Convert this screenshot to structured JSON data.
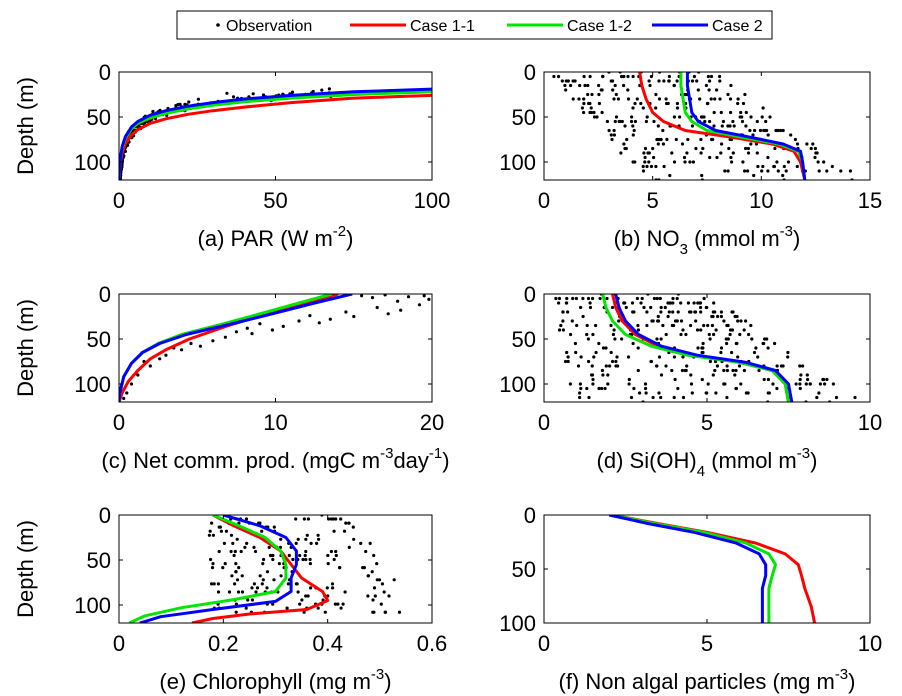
{
  "legend": {
    "entries": [
      {
        "label": "Observation",
        "kind": "marker",
        "color": "#000000"
      },
      {
        "label": "Case 1-1",
        "kind": "line",
        "color": "#ff0000"
      },
      {
        "label": "Case 1-2",
        "kind": "line",
        "color": "#00e600"
      },
      {
        "label": "Case 2",
        "kind": "line",
        "color": "#0000ff"
      }
    ]
  },
  "chart_data": [
    {
      "id": "a",
      "type": "line",
      "xlabel": {
        "pre": "(a) PAR (W m",
        "sup": "-2",
        "post": ")"
      },
      "ylabel": "Depth (m)",
      "xlim": [
        0,
        100
      ],
      "ylim": [
        0,
        120
      ],
      "y_inverted": true,
      "xticks": [
        0,
        50,
        100
      ],
      "yticks": [
        0,
        50,
        100
      ],
      "series": [
        {
          "name": "Case 1-1",
          "color": "#ff0000",
          "x": [
            100,
            75,
            55,
            40,
            30,
            22,
            15,
            10,
            6,
            4,
            2,
            1,
            0.5,
            0.2,
            0
          ],
          "y": [
            26,
            29,
            34,
            39,
            43,
            47,
            52,
            57,
            64,
            70,
            80,
            90,
            100,
            110,
            120
          ]
        },
        {
          "name": "Case 1-2",
          "color": "#00e600",
          "x": [
            100,
            75,
            55,
            40,
            30,
            22,
            15,
            10,
            6,
            4,
            2,
            1,
            0.5,
            0.2,
            0
          ],
          "y": [
            22,
            25,
            29,
            33,
            37,
            41,
            46,
            51,
            57,
            63,
            74,
            85,
            96,
            108,
            120
          ]
        },
        {
          "name": "Case 2",
          "color": "#0000ff",
          "x": [
            100,
            75,
            55,
            40,
            30,
            22,
            15,
            10,
            6,
            4,
            2,
            1,
            0.5,
            0.2,
            0
          ],
          "y": [
            19,
            22,
            26,
            30,
            34,
            38,
            43,
            48,
            55,
            61,
            72,
            83,
            95,
            107,
            120
          ]
        }
      ],
      "observations": {
        "kind": "curve-scatter",
        "curve_x": [
          80,
          60,
          45,
          35,
          26,
          19,
          13,
          9,
          6,
          4,
          2,
          1,
          0.3
        ],
        "curve_y": [
          20,
          23,
          27,
          31,
          35,
          40,
          45,
          52,
          60,
          68,
          80,
          95,
          118
        ],
        "count": 260,
        "spread": 7,
        "seed": 11
      }
    },
    {
      "id": "b",
      "type": "line",
      "xlabel": {
        "pre": "(b) NO",
        "sub": "3",
        "post2": " (mmol m",
        "sup": "-3",
        "post": ")"
      },
      "ylabel": "",
      "xlim": [
        0,
        15
      ],
      "ylim": [
        0,
        120
      ],
      "y_inverted": true,
      "xticks": [
        0,
        5,
        10,
        15
      ],
      "yticks": [
        0,
        50,
        100
      ],
      "series": [
        {
          "name": "Case 1-1",
          "color": "#ff0000",
          "x": [
            4.4,
            4.5,
            4.7,
            5.0,
            5.5,
            6.5,
            8.5,
            10.5,
            11.5,
            11.8,
            12.0
          ],
          "y": [
            0,
            15,
            30,
            45,
            55,
            65,
            72,
            80,
            88,
            100,
            120
          ]
        },
        {
          "name": "Case 1-2",
          "color": "#00e600",
          "x": [
            6.3,
            6.3,
            6.4,
            6.5,
            6.8,
            7.5,
            9.0,
            10.8,
            11.7,
            11.9,
            12.0
          ],
          "y": [
            0,
            15,
            30,
            45,
            55,
            65,
            72,
            80,
            88,
            100,
            120
          ]
        },
        {
          "name": "Case 2",
          "color": "#0000ff",
          "x": [
            6.6,
            6.6,
            6.7,
            6.8,
            7.1,
            7.9,
            9.4,
            11.0,
            11.8,
            11.9,
            12.0
          ],
          "y": [
            0,
            15,
            30,
            45,
            55,
            65,
            72,
            80,
            88,
            100,
            120
          ]
        }
      ],
      "observations": {
        "kind": "region",
        "xmin_at_top": 0.2,
        "xmax_at_top": 7.8,
        "xmin_at_bottom": 4.5,
        "xmax_at_bottom": 14.8,
        "count": 320,
        "seed": 23
      }
    },
    {
      "id": "c",
      "type": "line",
      "xlabel": {
        "pre": "(c) Net comm. prod. (mgC m",
        "sup": "-3",
        "post2": "day",
        "sup2": "-1",
        "post": ")"
      },
      "ylabel": "Depth (m)",
      "xlim": [
        0,
        20
      ],
      "ylim": [
        0,
        120
      ],
      "y_inverted": true,
      "xticks": [
        0,
        10,
        20
      ],
      "yticks": [
        0,
        50,
        100
      ],
      "series": [
        {
          "name": "Case 1-1",
          "color": "#ff0000",
          "x": [
            14.0,
            12.0,
            9.5,
            7.0,
            4.5,
            3.0,
            2.0,
            1.2,
            0.6,
            0.2,
            0
          ],
          "y": [
            0,
            10,
            22,
            35,
            50,
            62,
            72,
            85,
            97,
            110,
            120
          ]
        },
        {
          "name": "Case 1-2",
          "color": "#00e600",
          "x": [
            13.6,
            11.5,
            9.0,
            6.5,
            4.0,
            2.5,
            1.5,
            0.8,
            0.3,
            0.05,
            0
          ],
          "y": [
            0,
            10,
            22,
            34,
            45,
            55,
            65,
            77,
            92,
            110,
            120
          ]
        },
        {
          "name": "Case 2",
          "color": "#0000ff",
          "x": [
            14.9,
            12.5,
            9.8,
            7.0,
            4.3,
            2.6,
            1.5,
            0.8,
            0.3,
            0.05,
            0
          ],
          "y": [
            0,
            10,
            22,
            34,
            45,
            55,
            65,
            77,
            92,
            110,
            120
          ]
        }
      ],
      "observations": {
        "kind": "points",
        "x": [
          15.5,
          16.2,
          17.0,
          17.8,
          18.5,
          19.2,
          19.8,
          16.5,
          18.0,
          19.5,
          17.2,
          15.0,
          14.5,
          13.5,
          12.8,
          11.5,
          12.2,
          10.5,
          9.8,
          9.0,
          8.5,
          7.5,
          8.2,
          6.8,
          6.0,
          5.2,
          4.6,
          4.0,
          3.5,
          3.0,
          2.6,
          2.0,
          1.6,
          1.2,
          0.8,
          0.5,
          0.3
        ],
        "y": [
          2,
          4,
          1,
          8,
          3,
          12,
          6,
          15,
          18,
          2,
          22,
          25,
          20,
          28,
          32,
          30,
          24,
          36,
          40,
          33,
          44,
          42,
          38,
          48,
          52,
          58,
          55,
          62,
          60,
          68,
          72,
          80,
          75,
          90,
          100,
          110,
          116
        ]
      }
    },
    {
      "id": "d",
      "type": "line",
      "xlabel": {
        "pre": "(d) Si(OH)",
        "sub": "4",
        "post2": " (mmol m",
        "sup": "-3",
        "post": ")"
      },
      "ylabel": "",
      "xlim": [
        0,
        10
      ],
      "ylim": [
        0,
        120
      ],
      "y_inverted": true,
      "xticks": [
        0,
        5,
        10
      ],
      "yticks": [
        0,
        50,
        100
      ],
      "series": [
        {
          "name": "Case 1-1",
          "color": "#ff0000",
          "x": [
            2.1,
            2.2,
            2.4,
            2.8,
            3.5,
            4.5,
            6.0,
            7.0,
            7.4,
            7.5
          ],
          "y": [
            0,
            15,
            30,
            45,
            58,
            68,
            76,
            85,
            100,
            120
          ]
        },
        {
          "name": "Case 1-2",
          "color": "#00e600",
          "x": [
            1.8,
            1.9,
            2.1,
            2.5,
            3.3,
            4.4,
            6.0,
            7.0,
            7.4,
            7.5
          ],
          "y": [
            0,
            15,
            30,
            45,
            58,
            68,
            76,
            85,
            100,
            120
          ]
        },
        {
          "name": "Case 2",
          "color": "#0000ff",
          "x": [
            2.2,
            2.3,
            2.5,
            2.9,
            3.6,
            4.7,
            6.2,
            7.1,
            7.5,
            7.6
          ],
          "y": [
            0,
            15,
            30,
            45,
            58,
            68,
            76,
            85,
            100,
            120
          ]
        }
      ],
      "observations": {
        "kind": "region",
        "xmin_at_top": 0.3,
        "xmax_at_top": 5.0,
        "xmin_at_bottom": 0.8,
        "xmax_at_bottom": 9.8,
        "count": 340,
        "seed": 37
      }
    },
    {
      "id": "e",
      "type": "line",
      "xlabel": {
        "pre": "(e) Chlorophyll (mg m",
        "sup": "-3",
        "post": ")"
      },
      "ylabel": "Depth (m)",
      "xlim": [
        0,
        0.6
      ],
      "ylim": [
        0,
        120
      ],
      "y_inverted": true,
      "xticks": [
        0,
        0.2,
        0.4,
        0.6
      ],
      "yticks": [
        0,
        50,
        100
      ],
      "series": [
        {
          "name": "Case 1-1",
          "color": "#ff0000",
          "x": [
            0.18,
            0.22,
            0.27,
            0.31,
            0.33,
            0.35,
            0.39,
            0.4,
            0.36,
            0.25,
            0.18,
            0.14
          ],
          "y": [
            0,
            12,
            25,
            40,
            55,
            70,
            85,
            95,
            105,
            110,
            115,
            120
          ]
        },
        {
          "name": "Case 1-2",
          "color": "#00e600",
          "x": [
            0.18,
            0.23,
            0.28,
            0.31,
            0.32,
            0.32,
            0.3,
            0.22,
            0.12,
            0.05,
            0.02
          ],
          "y": [
            0,
            12,
            25,
            40,
            55,
            70,
            85,
            94,
            103,
            112,
            120
          ]
        },
        {
          "name": "Case 2",
          "color": "#0000ff",
          "x": [
            0.2,
            0.27,
            0.32,
            0.34,
            0.34,
            0.33,
            0.33,
            0.3,
            0.18,
            0.08,
            0.04
          ],
          "y": [
            0,
            12,
            25,
            40,
            55,
            70,
            85,
            96,
            105,
            113,
            120
          ]
        }
      ],
      "observations": {
        "kind": "region",
        "xmin_at_top": 0.17,
        "xmax_at_top": 0.45,
        "xmin_at_bottom": 0.18,
        "xmax_at_bottom": 0.58,
        "ymin": 0,
        "ymax": 108,
        "count": 200,
        "seed": 51
      }
    },
    {
      "id": "f",
      "type": "line",
      "xlabel": {
        "pre": "(f) Non algal particles (mg m",
        "sup": "-3",
        "post": ")"
      },
      "ylabel": "",
      "xlim": [
        0,
        10
      ],
      "ylim": [
        0,
        100
      ],
      "y_inverted": true,
      "xticks": [
        0,
        5,
        10
      ],
      "yticks": [
        0,
        50,
        100
      ],
      "series": [
        {
          "name": "Case 1-1",
          "color": "#ff0000",
          "x": [
            2.1,
            3.5,
            5.0,
            6.5,
            7.4,
            7.8,
            7.9,
            8.0,
            8.2,
            8.3
          ],
          "y": [
            0,
            8,
            16,
            26,
            36,
            46,
            56,
            68,
            85,
            100
          ]
        },
        {
          "name": "Case 1-2",
          "color": "#00e600",
          "x": [
            2.1,
            3.4,
            4.9,
            6.2,
            6.9,
            7.1,
            7.0,
            6.9,
            6.9,
            6.9
          ],
          "y": [
            0,
            8,
            16,
            26,
            36,
            46,
            56,
            68,
            85,
            100
          ]
        },
        {
          "name": "Case 2",
          "color": "#0000ff",
          "x": [
            2.0,
            3.2,
            4.6,
            5.9,
            6.6,
            6.8,
            6.8,
            6.7,
            6.7,
            6.7
          ],
          "y": [
            0,
            8,
            16,
            26,
            36,
            46,
            56,
            68,
            85,
            100
          ]
        }
      ]
    }
  ]
}
